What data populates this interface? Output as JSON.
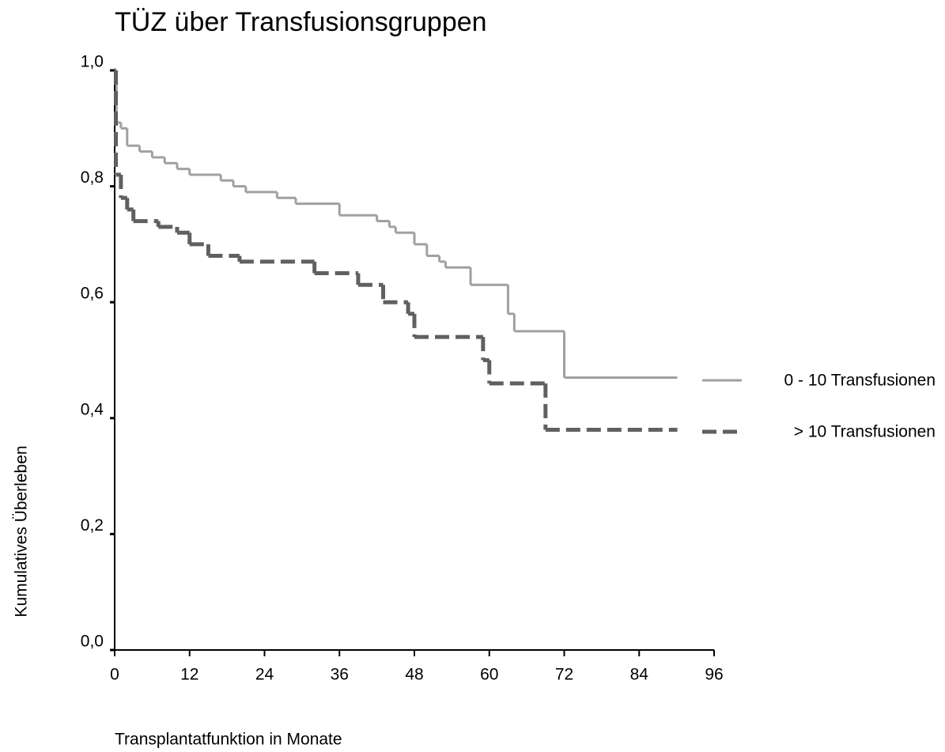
{
  "chart_data": {
    "type": "step",
    "title": "TÜZ über Transfusionsgruppen",
    "x_label": "Transplantatfunktion in Monate",
    "y_label": "Kumulatives  Überleben",
    "xlim": [
      0,
      96
    ],
    "xticks": [
      0,
      12,
      24,
      36,
      48,
      60,
      72,
      84,
      96
    ],
    "ylim": [
      0,
      1
    ],
    "yticks": [
      {
        "value": 0,
        "label": "0,0"
      },
      {
        "value": 0.2,
        "label": "0,2"
      },
      {
        "value": 0.4,
        "label": "0,4"
      },
      {
        "value": 0.6,
        "label": "0,6"
      },
      {
        "value": 0.8,
        "label": "0,8"
      },
      {
        "value": 1,
        "label": "1,0"
      }
    ],
    "legend": "right",
    "series": [
      {
        "name": "0 - 10 Transfusionen",
        "color": "#a0a0a0",
        "dash": false,
        "x": [
          0,
          0.3,
          1,
          2,
          4,
          6,
          8,
          10,
          12,
          17,
          19,
          21,
          26,
          29,
          36,
          42,
          44,
          45,
          48,
          50,
          52,
          53,
          57,
          63,
          64,
          72,
          90
        ],
        "values": [
          1,
          0.91,
          0.9,
          0.87,
          0.86,
          0.85,
          0.84,
          0.83,
          0.82,
          0.81,
          0.8,
          0.79,
          0.78,
          0.77,
          0.75,
          0.74,
          0.73,
          0.72,
          0.7,
          0.68,
          0.67,
          0.66,
          0.63,
          0.58,
          0.55,
          0.47,
          0.47
        ]
      },
      {
        "name": "> 10 Transfusionen",
        "color": "#606060",
        "dash": true,
        "x": [
          0,
          0.2,
          1,
          2,
          3,
          7,
          10,
          12,
          15,
          20,
          32,
          39,
          43,
          47,
          48,
          59,
          60,
          69,
          90
        ],
        "values": [
          1,
          0.82,
          0.78,
          0.76,
          0.74,
          0.73,
          0.72,
          0.7,
          0.68,
          0.67,
          0.65,
          0.63,
          0.6,
          0.58,
          0.54,
          0.5,
          0.46,
          0.38,
          0.38
        ]
      }
    ]
  }
}
